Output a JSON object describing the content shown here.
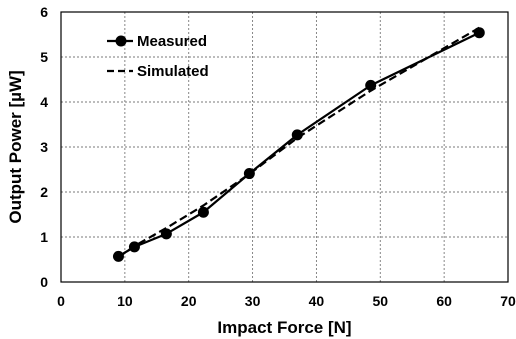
{
  "chart_data": {
    "type": "line",
    "xlabel": "Impact Force [N]",
    "ylabel": "Output Power [µW]",
    "xlim": [
      0,
      70
    ],
    "ylim": [
      0,
      6
    ],
    "xticks": [
      "0",
      "10",
      "20",
      "30",
      "40",
      "50",
      "60",
      "70"
    ],
    "yticks": [
      "0",
      "1",
      "2",
      "3",
      "4",
      "5",
      "6"
    ],
    "grid": true,
    "legend_position": "top-left",
    "series": [
      {
        "name": "Measured",
        "style": "solid-with-markers",
        "color": "#000000",
        "x": [
          9,
          11.5,
          16.5,
          22.3,
          29.5,
          37,
          48.5,
          65.5
        ],
        "y": [
          0.57,
          0.78,
          1.07,
          1.55,
          2.41,
          3.27,
          4.37,
          5.54
        ]
      },
      {
        "name": "Simulated",
        "style": "dashed",
        "color": "#000000",
        "x": [
          9,
          11.5,
          16.5,
          22.3,
          29.5,
          37,
          48.5,
          65.5
        ],
        "y": [
          0.55,
          0.8,
          1.2,
          1.7,
          2.4,
          3.2,
          4.25,
          5.65
        ]
      }
    ]
  }
}
